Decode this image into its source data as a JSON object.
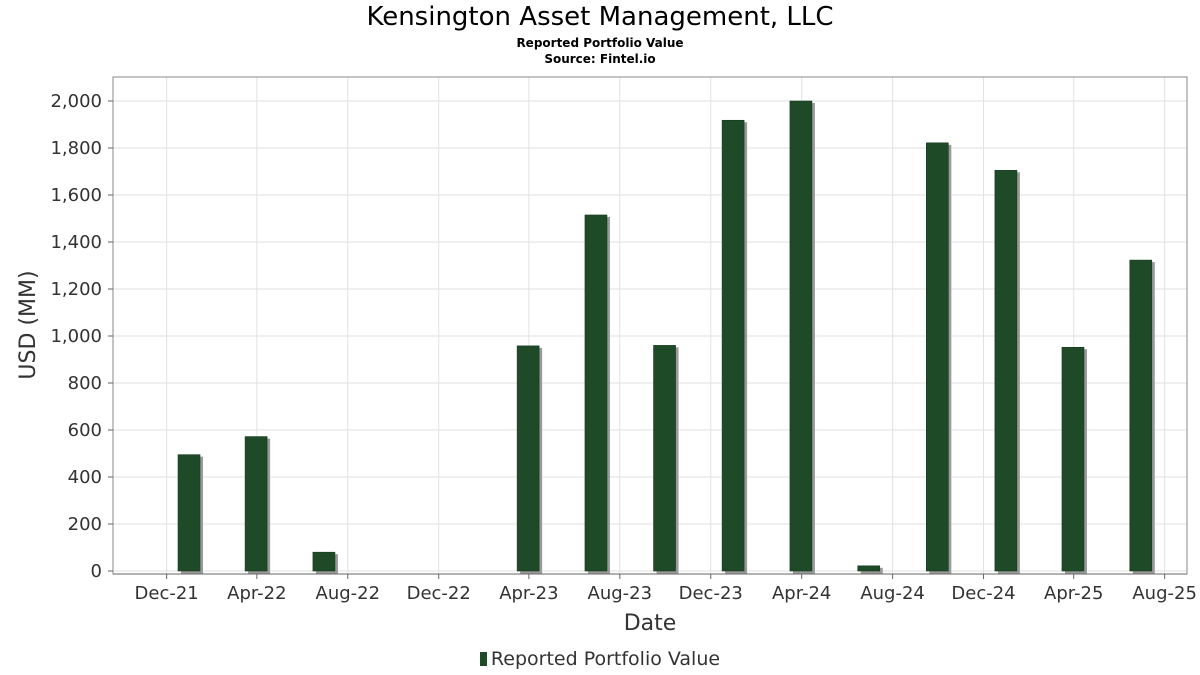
{
  "header": {
    "title": "Kensington Asset Management, LLC",
    "subtitle": "Reported Portfolio Value",
    "source": "Source: Fintel.io"
  },
  "legend": {
    "label": "Reported Portfolio Value"
  },
  "colors": {
    "bar": "#1e4a28",
    "bar_shadow": "#9a9a9a",
    "grid": "#e2e2e2",
    "frame": "#888888"
  },
  "chart_data": {
    "type": "bar",
    "title": "Kensington Asset Management, LLC",
    "subtitle": "Reported Portfolio Value",
    "xlabel": "Date",
    "ylabel": "USD (MM)",
    "ylim": [
      0,
      2100
    ],
    "xlim": [
      "2021-09-20",
      "2025-08-31"
    ],
    "grid": true,
    "legend_position": "bottom",
    "y_ticks": [
      0,
      200,
      400,
      600,
      800,
      1000,
      1200,
      1400,
      1600,
      1800,
      2000
    ],
    "y_tick_labels": [
      "0",
      "200",
      "400",
      "600",
      "800",
      "1,000",
      "1,200",
      "1,400",
      "1,600",
      "1,800",
      "2,000"
    ],
    "x_ticks": [
      "2021-12-01",
      "2022-04-01",
      "2022-08-01",
      "2022-12-01",
      "2023-04-01",
      "2023-08-01",
      "2023-12-01",
      "2024-04-01",
      "2024-08-01",
      "2024-12-01",
      "2025-04-01",
      "2025-08-01"
    ],
    "x_tick_labels": [
      "Dec-21",
      "Apr-22",
      "Aug-22",
      "Dec-22",
      "Apr-23",
      "Aug-23",
      "Dec-23",
      "Apr-24",
      "Aug-24",
      "Dec-24",
      "Apr-25",
      "Aug-25"
    ],
    "series": [
      {
        "name": "Reported Portfolio Value",
        "x": [
          "2021-12-31",
          "2022-03-31",
          "2022-06-30",
          "2023-03-31",
          "2023-06-30",
          "2023-09-30",
          "2023-12-31",
          "2024-03-31",
          "2024-06-30",
          "2024-09-30",
          "2024-12-31",
          "2025-03-31",
          "2025-06-30"
        ],
        "values": [
          495,
          572,
          80,
          958,
          1515,
          960,
          1918,
          2000,
          22,
          1822,
          1705,
          952,
          1323
        ]
      }
    ]
  }
}
